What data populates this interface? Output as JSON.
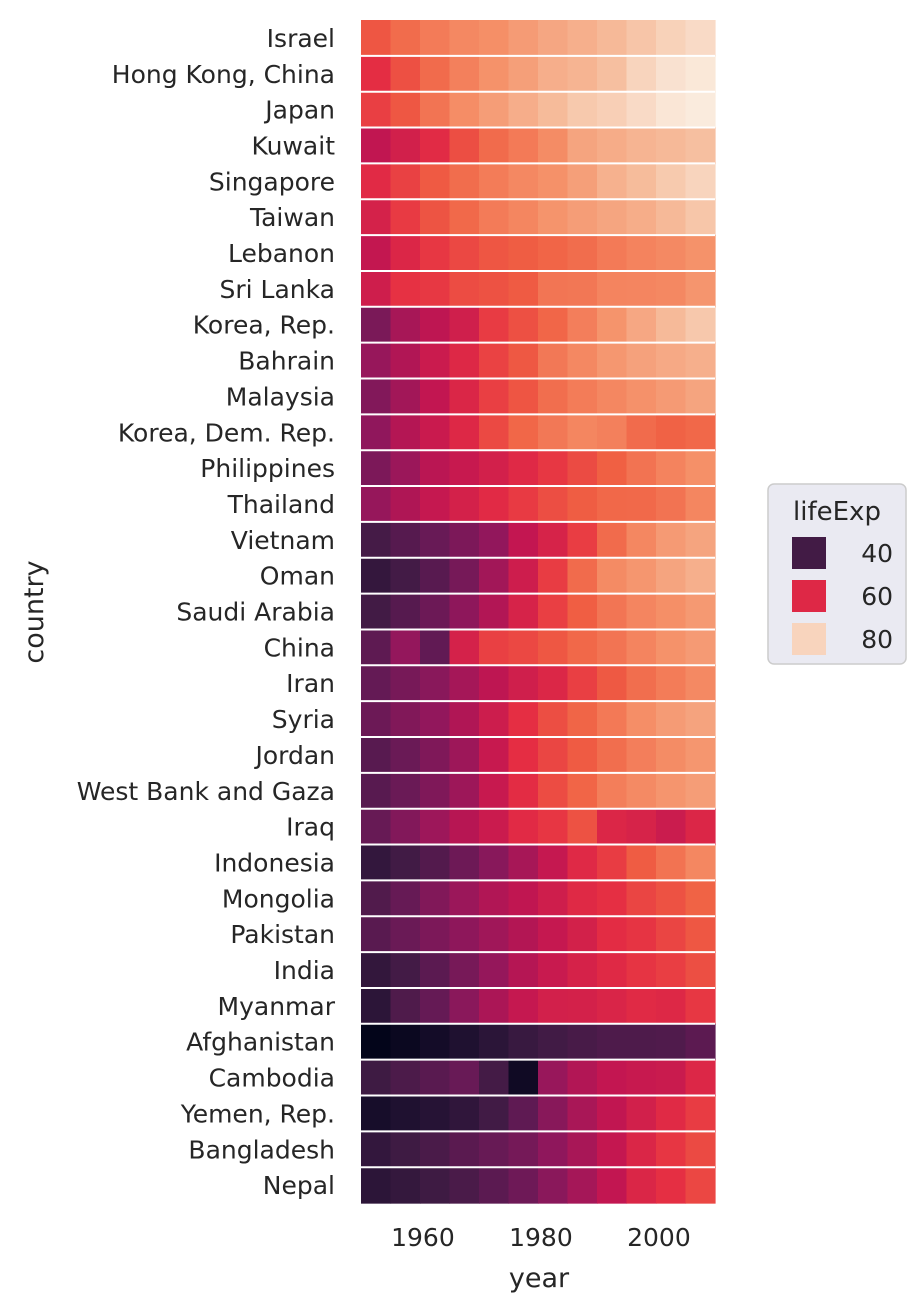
{
  "chart_data": {
    "type": "heatmap",
    "x_label": "year",
    "y_label": "country",
    "x": [
      1952,
      1957,
      1962,
      1967,
      1972,
      1977,
      1982,
      1987,
      1992,
      1997,
      2002,
      2007
    ],
    "x_ticks": [
      1960,
      1980,
      2000
    ],
    "countries": [
      "Israel",
      "Hong Kong, China",
      "Japan",
      "Kuwait",
      "Singapore",
      "Taiwan",
      "Lebanon",
      "Sri Lanka",
      "Korea, Rep.",
      "Bahrain",
      "Malaysia",
      "Korea, Dem. Rep.",
      "Philippines",
      "Thailand",
      "Vietnam",
      "Oman",
      "Saudi Arabia",
      "China",
      "Iran",
      "Syria",
      "Jordan",
      "West Bank and Gaza",
      "Iraq",
      "Indonesia",
      "Mongolia",
      "Pakistan",
      "India",
      "Myanmar",
      "Afghanistan",
      "Cambodia",
      "Yemen, Rep.",
      "Bangladesh",
      "Nepal"
    ],
    "values": [
      [
        65.4,
        67.8,
        69.4,
        70.8,
        71.6,
        73.1,
        74.5,
        75.6,
        76.9,
        78.3,
        79.7,
        80.7
      ],
      [
        61.0,
        64.8,
        67.7,
        70.0,
        72.0,
        73.6,
        75.5,
        76.2,
        77.6,
        80.0,
        81.5,
        82.2
      ],
      [
        63.0,
        65.5,
        68.7,
        71.4,
        73.4,
        75.4,
        77.1,
        78.7,
        79.4,
        80.7,
        82.0,
        82.6
      ],
      [
        55.6,
        58.0,
        60.5,
        64.6,
        67.7,
        69.3,
        71.3,
        74.2,
        75.2,
        76.2,
        76.9,
        77.6
      ],
      [
        60.4,
        63.2,
        65.8,
        67.9,
        69.5,
        70.8,
        71.8,
        73.6,
        75.8,
        77.2,
        78.8,
        80.0
      ],
      [
        58.5,
        62.4,
        65.2,
        67.5,
        69.4,
        70.6,
        72.2,
        73.4,
        74.3,
        75.3,
        76.9,
        78.4
      ],
      [
        55.9,
        59.5,
        62.1,
        63.9,
        65.4,
        66.1,
        67.0,
        67.9,
        69.3,
        70.3,
        71.0,
        72.0
      ],
      [
        57.6,
        61.5,
        62.2,
        64.3,
        65.0,
        65.9,
        68.8,
        69.0,
        70.4,
        70.5,
        70.8,
        72.4
      ],
      [
        47.5,
        52.7,
        55.3,
        57.7,
        62.6,
        64.8,
        67.1,
        69.8,
        72.2,
        74.6,
        77.0,
        78.6
      ],
      [
        50.9,
        53.8,
        56.9,
        59.9,
        63.3,
        65.6,
        69.1,
        70.8,
        72.6,
        73.9,
        74.8,
        75.6
      ],
      [
        48.5,
        52.1,
        55.7,
        59.4,
        63.0,
        65.3,
        68.0,
        69.5,
        70.7,
        71.9,
        73.0,
        74.2
      ],
      [
        50.1,
        54.1,
        56.7,
        59.9,
        64.0,
        67.2,
        69.1,
        70.6,
        69.98,
        67.7,
        66.7,
        67.3
      ],
      [
        47.8,
        51.3,
        54.8,
        56.4,
        58.1,
        60.1,
        62.1,
        64.2,
        66.5,
        68.6,
        70.3,
        71.7
      ],
      [
        50.8,
        53.6,
        56.1,
        58.3,
        60.4,
        62.5,
        64.6,
        66.1,
        67.3,
        67.5,
        68.6,
        70.6
      ],
      [
        40.4,
        42.9,
        45.4,
        47.8,
        50.3,
        55.8,
        58.8,
        62.8,
        67.7,
        70.7,
        73.0,
        74.2
      ],
      [
        37.6,
        40.1,
        43.2,
        46.99,
        52.1,
        57.4,
        62.7,
        67.7,
        71.2,
        72.5,
        74.2,
        75.6
      ],
      [
        40.0,
        42.9,
        45.9,
        49.9,
        53.9,
        58.7,
        63.0,
        66.3,
        68.8,
        70.5,
        71.6,
        72.8
      ],
      [
        44.0,
        50.5,
        44.5,
        58.4,
        63.1,
        63.97,
        65.5,
        67.3,
        68.7,
        70.4,
        72.0,
        73.0
      ],
      [
        44.9,
        47.2,
        49.3,
        52.5,
        55.2,
        57.7,
        59.6,
        63.0,
        65.7,
        68.0,
        69.5,
        71.0
      ],
      [
        45.9,
        48.3,
        50.3,
        53.7,
        57.3,
        61.2,
        64.6,
        66.97,
        69.2,
        71.5,
        73.1,
        74.1
      ],
      [
        43.2,
        45.7,
        48.1,
        51.6,
        56.5,
        61.1,
        63.7,
        65.9,
        68.0,
        69.8,
        71.3,
        72.5
      ],
      [
        43.2,
        45.7,
        48.1,
        51.6,
        56.5,
        60.8,
        64.4,
        67.0,
        69.7,
        71.1,
        72.4,
        73.4
      ],
      [
        45.3,
        48.4,
        51.5,
        54.5,
        56.9,
        60.4,
        62.0,
        65.0,
        59.5,
        58.8,
        57.0,
        59.5
      ],
      [
        37.5,
        39.9,
        42.5,
        46.0,
        49.2,
        52.7,
        56.2,
        60.1,
        62.7,
        66.0,
        68.6,
        70.7
      ],
      [
        42.2,
        45.2,
        48.3,
        51.3,
        53.8,
        55.5,
        57.5,
        60.2,
        61.3,
        63.6,
        65.0,
        66.8
      ],
      [
        43.4,
        45.6,
        47.7,
        49.8,
        51.9,
        54.0,
        56.2,
        58.2,
        60.8,
        61.8,
        63.6,
        65.5
      ],
      [
        37.4,
        40.2,
        43.6,
        47.2,
        50.7,
        54.2,
        56.6,
        58.6,
        60.2,
        61.8,
        62.9,
        64.7
      ],
      [
        36.3,
        41.9,
        45.1,
        49.4,
        53.1,
        56.1,
        58.1,
        58.3,
        59.3,
        60.3,
        59.9,
        62.1
      ],
      [
        28.8,
        30.3,
        32.0,
        34.0,
        36.1,
        38.4,
        39.9,
        40.8,
        41.7,
        41.8,
        42.1,
        43.8
      ],
      [
        39.4,
        41.4,
        43.4,
        45.4,
        40.3,
        31.2,
        51.0,
        53.9,
        55.8,
        56.5,
        56.8,
        59.7
      ],
      [
        32.5,
        33.97,
        35.2,
        36.98,
        39.8,
        44.2,
        49.1,
        52.9,
        55.6,
        58.0,
        60.3,
        62.7
      ],
      [
        37.5,
        39.3,
        41.2,
        43.5,
        45.3,
        46.9,
        50.0,
        52.8,
        56.0,
        59.4,
        62.0,
        64.1
      ],
      [
        36.2,
        37.7,
        39.4,
        41.2,
        43.6,
        46.1,
        49.4,
        52.5,
        55.7,
        59.4,
        61.3,
        63.8
      ]
    ],
    "vmin": 28.8,
    "vmax": 82.6,
    "legend": {
      "title": "lifeExp",
      "entries": [
        "40",
        "60",
        "80"
      ],
      "entry_values": [
        40,
        60,
        80
      ],
      "placement": "right"
    },
    "grid": false
  }
}
